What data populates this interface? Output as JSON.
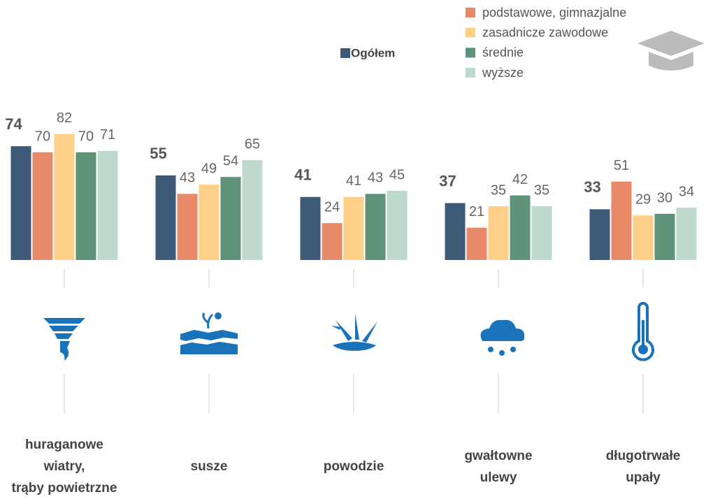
{
  "chart_data": {
    "type": "bar",
    "categories": [
      "huraganowe\nwiatry,\ntrąby powietrzne",
      "susze",
      "powodzie",
      "gwałtowne\nulewy",
      "długotrwałe\nupały"
    ],
    "series": [
      {
        "name": "Ogółem",
        "color": "#3d5a78",
        "values": [
          74,
          55,
          41,
          37,
          33
        ]
      },
      {
        "name": "podstawowe, gimnazjalne",
        "color": "#e8896a",
        "values": [
          70,
          43,
          24,
          21,
          51
        ]
      },
      {
        "name": "zasadnicze zawodowe",
        "color": "#fdd08a",
        "values": [
          82,
          49,
          41,
          35,
          29
        ]
      },
      {
        "name": "średnie",
        "color": "#5e937a",
        "values": [
          70,
          54,
          43,
          42,
          30
        ]
      },
      {
        "name": "wyższe",
        "color": "#bcd9cc",
        "values": [
          71,
          65,
          45,
          35,
          34
        ]
      }
    ],
    "ylim": [
      0,
      100
    ]
  }
}
